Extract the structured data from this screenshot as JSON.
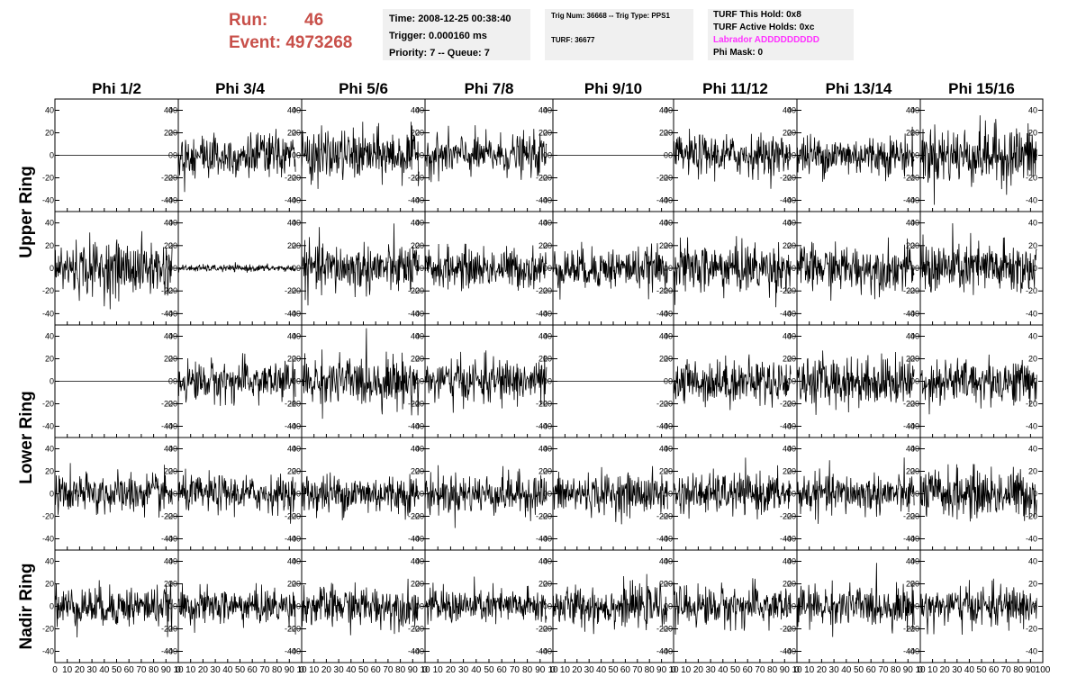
{
  "run": {
    "run_label": "Run:",
    "run_value": "46",
    "event_label": "Event:",
    "event_value": "4973268"
  },
  "info_time": {
    "time": "Time: 2008-12-25 00:38:40",
    "trigger": "Trigger: 0.000160 ms",
    "priority": "Priority: 7 -- Queue: 7"
  },
  "info_trig": {
    "trig": "Trig Num: 36668 -- Trig Type: PPS1",
    "turf": "TURF: 36677"
  },
  "info_turf": {
    "hold": "TURF This Hold: 0x8",
    "active": "TURF Active Holds: 0xc",
    "labrador": "Labrador ADDDDDDDDD",
    "phimask": "Phi Mask: 0"
  },
  "colors": {
    "run_text": "#c8504a",
    "labrador_text": "#ff33ff",
    "trace": "#000000",
    "info_bg": "#f0f0f0"
  },
  "chart_data": {
    "type": "line",
    "columns": [
      "Phi 1/2",
      "Phi 3/4",
      "Phi 5/6",
      "Phi 7/8",
      "Phi 9/10",
      "Phi 11/12",
      "Phi 13/14",
      "Phi 15/16"
    ],
    "ring_labels": [
      {
        "text": "Upper Ring",
        "rows": [
          0,
          1
        ]
      },
      {
        "text": "Lower Ring",
        "rows": [
          2,
          3
        ]
      },
      {
        "text": "Nadir Ring",
        "rows": [
          4
        ]
      }
    ],
    "xlim": [
      0,
      100
    ],
    "ylim": [
      -50,
      50
    ],
    "x_ticks": [
      0,
      10,
      20,
      30,
      40,
      50,
      60,
      70,
      80,
      90,
      100
    ],
    "x_tick_labels_first": [
      "0",
      "10",
      "20",
      "30",
      "40",
      "50",
      "60",
      "70",
      "80",
      "90",
      "10"
    ],
    "x_tick_labels_mid": [
      "0",
      "10",
      "20",
      "30",
      "40",
      "50",
      "60",
      "70",
      "80",
      "90",
      "10"
    ],
    "x_tick_labels_last": [
      "0",
      "10",
      "20",
      "30",
      "40",
      "50",
      "60",
      "70",
      "80",
      "90",
      "100"
    ],
    "y_ticks": [
      -40,
      -20,
      0,
      20,
      40
    ],
    "y_tick_labels": [
      "-40",
      "-20",
      "0",
      "20",
      "40"
    ],
    "n_samples": 260,
    "x_max_sample": 95,
    "amplitude_rms": [
      [
        0,
        10,
        11,
        9,
        0,
        9,
        9,
        13
      ],
      [
        12,
        1.5,
        11,
        9,
        9,
        11,
        10,
        12
      ],
      [
        0,
        9,
        11,
        10,
        0,
        10,
        11,
        10
      ],
      [
        9,
        8,
        9,
        9,
        9,
        9,
        9,
        11
      ],
      [
        9,
        8,
        9,
        8,
        9,
        9,
        9,
        9
      ]
    ]
  }
}
